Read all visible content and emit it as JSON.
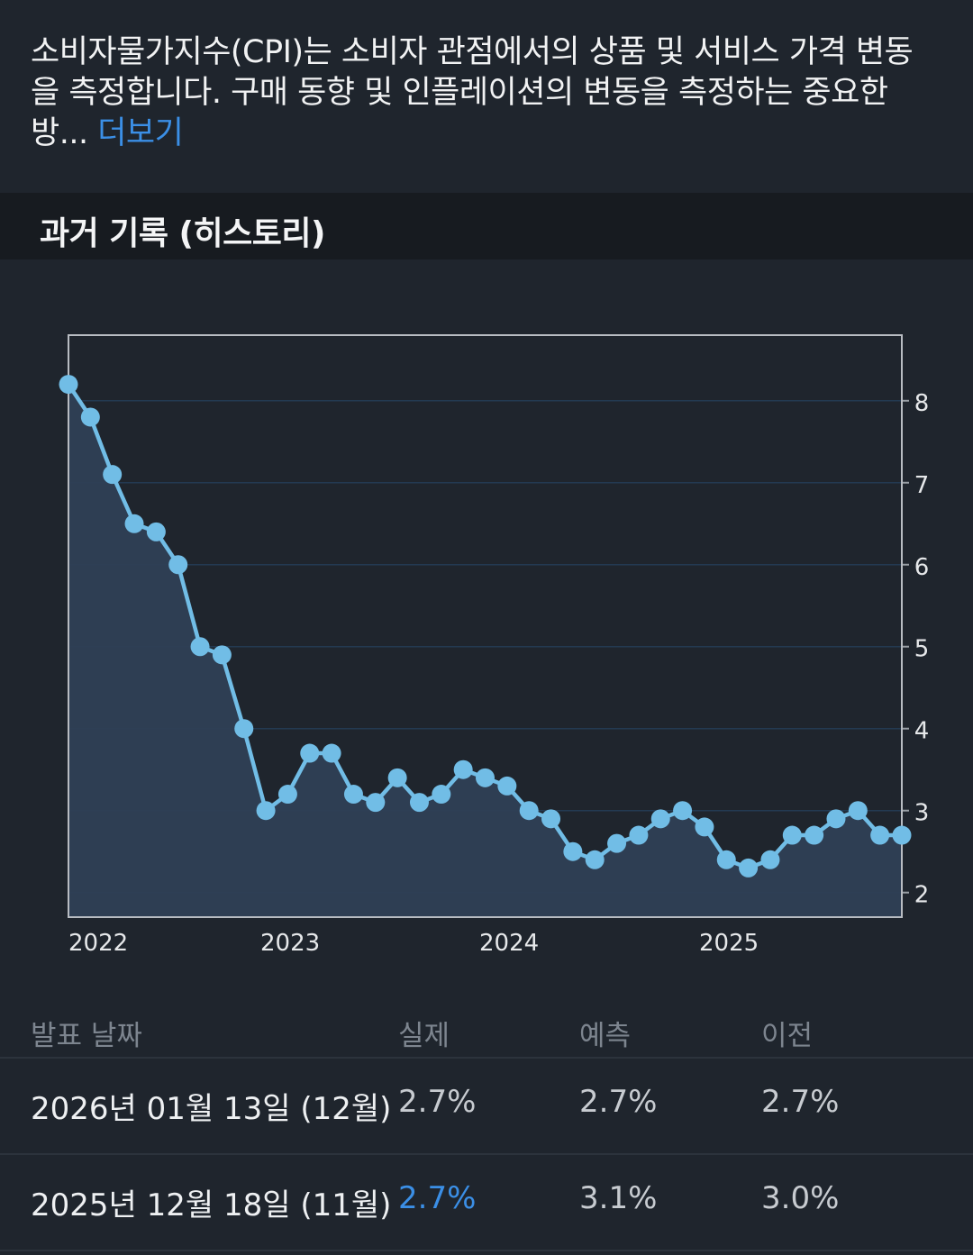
{
  "description": {
    "text": "소비자물가지수(CPI)는 소비자 관점에서의 상품 및 서비스 가격 변동을 측정합니다. 구매 동향 및 인플레이션의 변동을 측정하는 중요한 방...",
    "more_label": "더보기"
  },
  "section": {
    "title": "과거 기록 (히스토리)"
  },
  "colors": {
    "line": "#71bde6",
    "area_fill": "#2f3f55",
    "highlight": "#3b8fe6",
    "background": "#1f252d"
  },
  "chart_data": {
    "type": "area",
    "x_tick_labels": [
      "2022",
      "2023",
      "2024",
      "2025"
    ],
    "y_ticks": [
      2,
      3,
      4,
      5,
      6,
      7,
      8
    ],
    "ylim": [
      1.7,
      8.8
    ],
    "y_axis_side": "right",
    "grid": true,
    "series": [
      {
        "values": [
          8.2,
          7.8,
          7.1,
          6.5,
          6.4,
          6.0,
          5.0,
          4.9,
          4.0,
          3.0,
          3.2,
          3.7,
          3.7,
          3.2,
          3.1,
          3.4,
          3.1,
          3.2,
          3.5,
          3.4,
          3.3,
          3.0,
          2.9,
          2.5,
          2.4,
          2.6,
          2.7,
          2.9,
          3.0,
          2.8,
          2.4,
          2.3,
          2.4,
          2.7,
          2.7,
          2.9,
          3.0,
          2.7,
          2.7
        ]
      }
    ]
  },
  "table": {
    "headers": [
      "발표 날짜",
      "실제",
      "예측",
      "이전"
    ],
    "rows": [
      {
        "date": "2026년 01월 13일 (12월)",
        "actual": "2.7%",
        "forecast": "2.7%",
        "previous": "2.7%",
        "actual_highlight": false
      },
      {
        "date": "2025년 12월 18일 (11월)",
        "actual": "2.7%",
        "forecast": "3.1%",
        "previous": "3.0%",
        "actual_highlight": true
      }
    ]
  }
}
